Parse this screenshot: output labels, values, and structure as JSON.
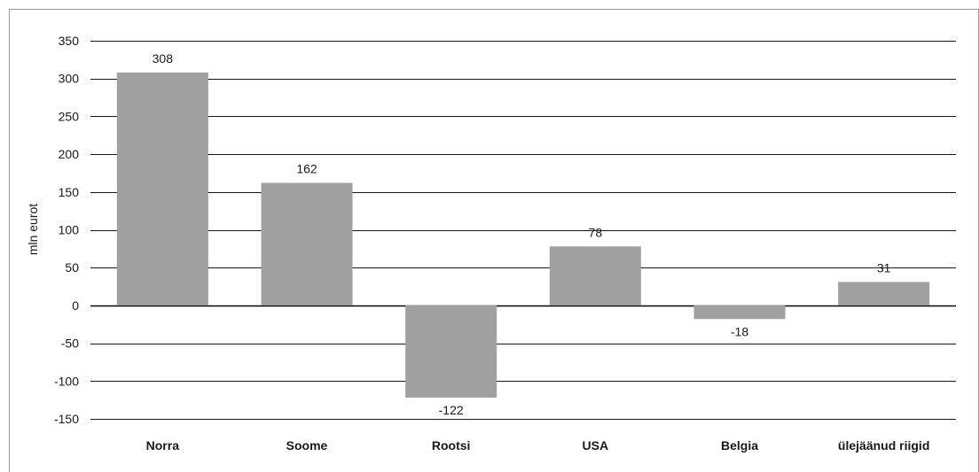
{
  "chart_data": {
    "type": "bar",
    "categories": [
      "Norra",
      "Soome",
      "Rootsi",
      "USA",
      "Belgia",
      "ülejäänud riigid"
    ],
    "values": [
      308,
      162,
      -122,
      78,
      -18,
      31
    ],
    "data_labels": [
      "308",
      "162",
      "-122",
      "78",
      "-18",
      "31"
    ],
    "ylabel": "mln eurot",
    "xlabel": "",
    "ylim": [
      -150,
      350
    ],
    "yticks": [
      350,
      300,
      250,
      200,
      150,
      100,
      50,
      0,
      -50,
      -100,
      -150
    ],
    "grid": true,
    "legend": "none",
    "bar_color": "#a0a0a0"
  }
}
